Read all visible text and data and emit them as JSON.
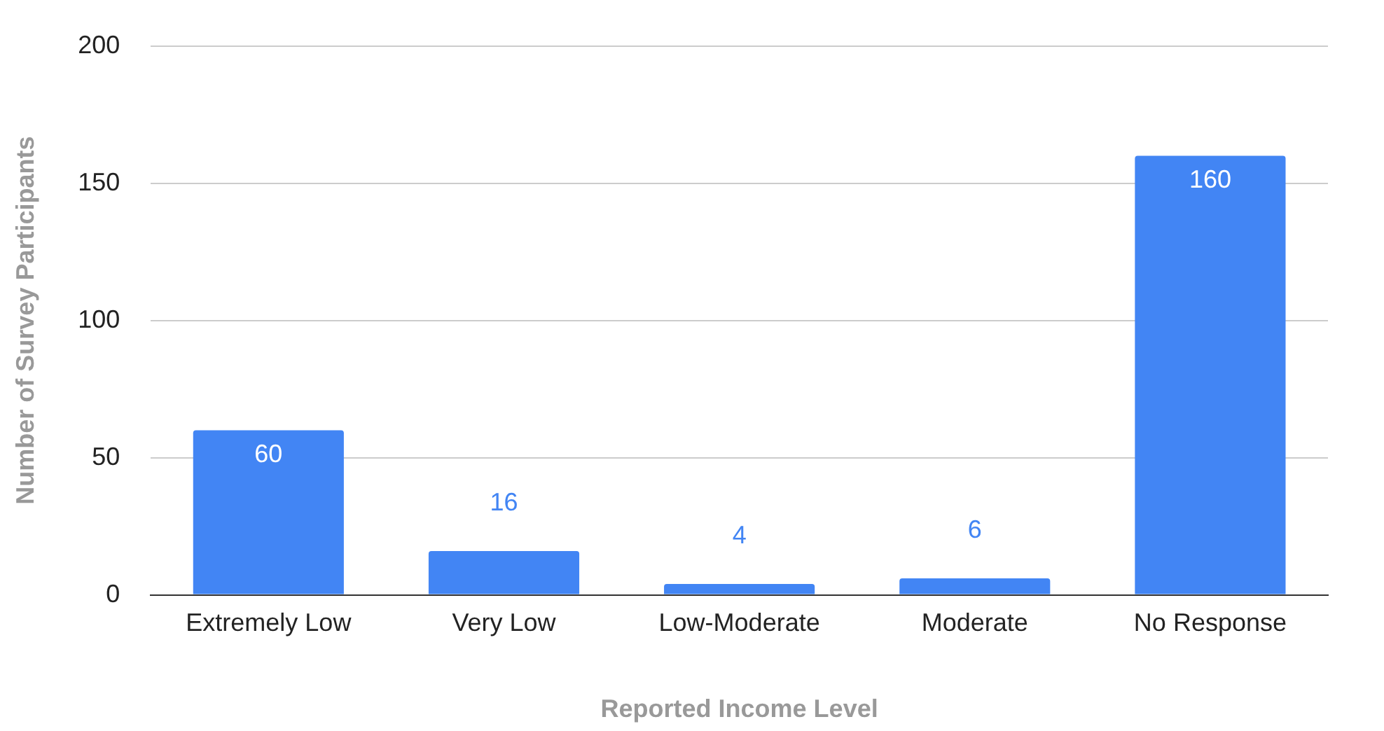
{
  "chart_data": {
    "type": "bar",
    "xlabel": "Reported Income Level",
    "ylabel": "Number of Survey Participants",
    "categories": [
      "Extremely Low",
      "Very Low",
      "Low-Moderate",
      "Moderate",
      "No Response"
    ],
    "values": [
      60,
      16,
      4,
      6,
      160
    ],
    "color": "#4285f4",
    "ylim": [
      0,
      200
    ],
    "yticks": [
      0,
      50,
      100,
      150,
      200
    ],
    "grid": "y",
    "data_labels": true,
    "legend": false
  }
}
